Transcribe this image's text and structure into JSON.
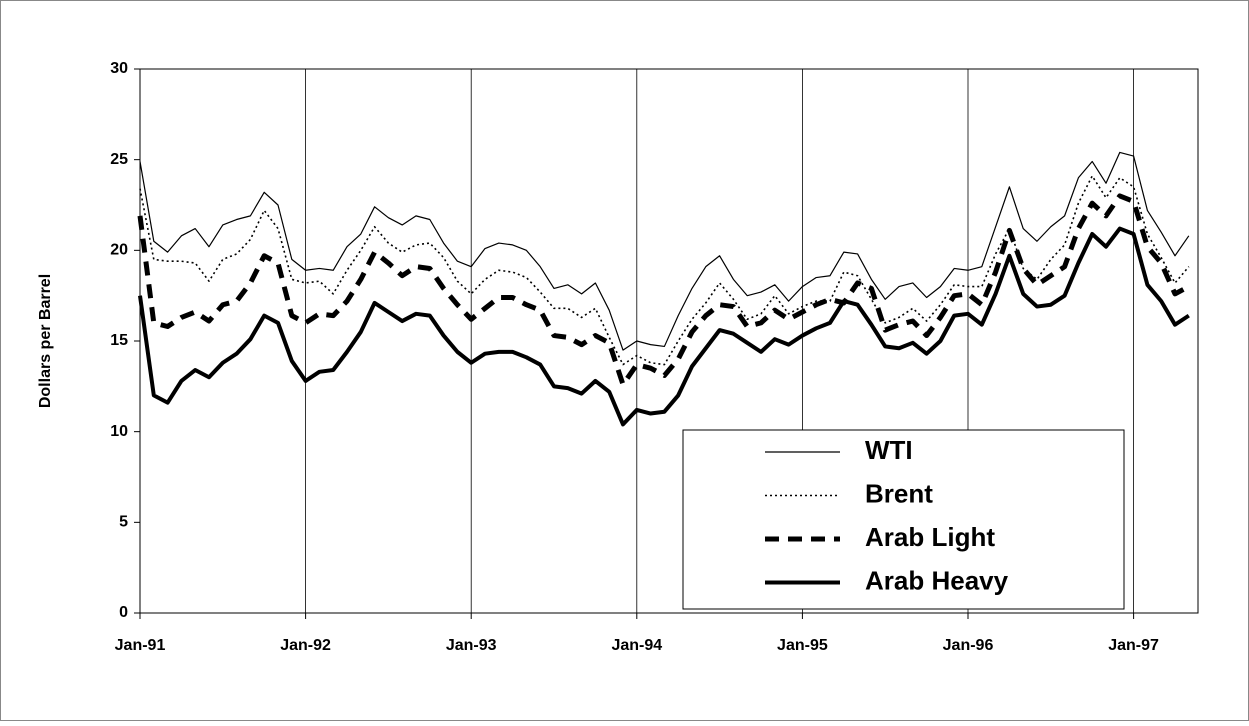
{
  "chart_data": {
    "type": "line",
    "y_label": "Dollars per Barrel",
    "categories": [
      "Jan-91",
      null,
      null,
      null,
      null,
      null,
      null,
      null,
      null,
      null,
      null,
      null,
      "Jan-92",
      null,
      null,
      null,
      null,
      null,
      null,
      null,
      null,
      null,
      null,
      null,
      "Jan-93",
      null,
      null,
      null,
      null,
      null,
      null,
      null,
      null,
      null,
      null,
      null,
      "Jan-94",
      null,
      null,
      null,
      null,
      null,
      null,
      null,
      null,
      null,
      null,
      null,
      "Jan-95",
      null,
      null,
      null,
      null,
      null,
      null,
      null,
      null,
      null,
      null,
      null,
      "Jan-96",
      null,
      null,
      null,
      null,
      null,
      null,
      null,
      null,
      null,
      null,
      null,
      "Jan-97",
      null,
      null,
      null,
      null
    ],
    "ylim": [
      0,
      30
    ],
    "yticks": [
      0,
      5,
      10,
      15,
      20,
      25,
      30
    ],
    "vertical_grid": true,
    "legend_position": "lower right",
    "series": [
      {
        "name": "WTI",
        "color": "#000000",
        "line_style": "thin",
        "values": [
          24.9,
          20.5,
          19.9,
          20.8,
          21.2,
          20.2,
          21.4,
          21.7,
          21.9,
          23.2,
          22.5,
          19.5,
          18.9,
          19.0,
          18.9,
          20.2,
          20.9,
          22.4,
          21.8,
          21.4,
          21.9,
          21.7,
          20.4,
          19.4,
          19.1,
          20.1,
          20.4,
          20.3,
          20.0,
          19.1,
          17.9,
          18.1,
          17.6,
          18.2,
          16.7,
          14.5,
          15.0,
          14.8,
          14.7,
          16.4,
          17.9,
          19.1,
          19.7,
          18.4,
          17.5,
          17.7,
          18.1,
          17.2,
          18.0,
          18.5,
          18.6,
          19.9,
          19.8,
          18.4,
          17.3,
          18.0,
          18.2,
          17.4,
          18.0,
          19.0,
          18.9,
          19.1,
          21.3,
          23.5,
          21.2,
          20.5,
          21.3,
          21.9,
          24.0,
          24.9,
          23.7,
          25.4,
          25.2,
          22.2,
          21.0,
          19.7,
          20.8
        ]
      },
      {
        "name": "Brent",
        "color": "#000000",
        "line_style": "dotted",
        "values": [
          23.4,
          19.5,
          19.4,
          19.4,
          19.3,
          18.3,
          19.5,
          19.8,
          20.6,
          22.2,
          21.2,
          18.4,
          18.2,
          18.3,
          17.6,
          18.9,
          20.0,
          21.3,
          20.4,
          19.9,
          20.3,
          20.4,
          19.6,
          18.3,
          17.6,
          18.4,
          18.9,
          18.8,
          18.5,
          17.7,
          16.8,
          16.8,
          16.3,
          16.8,
          15.2,
          13.7,
          14.2,
          13.8,
          13.7,
          15.0,
          16.2,
          17.1,
          18.2,
          17.3,
          16.2,
          16.5,
          17.5,
          16.5,
          16.9,
          17.2,
          17.2,
          18.8,
          18.6,
          17.3,
          16.0,
          16.3,
          16.8,
          16.1,
          17.0,
          18.1,
          18.0,
          18.0,
          19.8,
          21.2,
          19.0,
          18.4,
          19.5,
          20.3,
          22.6,
          24.1,
          22.9,
          24.0,
          23.5,
          20.9,
          19.6,
          18.2,
          19.1
        ]
      },
      {
        "name": "Arab Light",
        "color": "#000000",
        "line_style": "dashed",
        "values": [
          21.9,
          16.0,
          15.8,
          16.3,
          16.6,
          16.1,
          17.0,
          17.2,
          18.2,
          19.7,
          19.3,
          16.4,
          16.0,
          16.5,
          16.4,
          17.2,
          18.4,
          19.9,
          19.3,
          18.6,
          19.1,
          19.0,
          17.9,
          17.0,
          16.2,
          16.8,
          17.4,
          17.4,
          17.0,
          16.7,
          15.3,
          15.2,
          14.8,
          15.3,
          14.9,
          12.6,
          13.7,
          13.5,
          13.1,
          14.0,
          15.5,
          16.4,
          17.0,
          16.9,
          15.8,
          16.0,
          16.7,
          16.2,
          16.6,
          17.0,
          17.3,
          17.1,
          18.2,
          17.9,
          15.6,
          15.9,
          16.1,
          15.3,
          16.3,
          17.5,
          17.6,
          17.0,
          18.8,
          21.1,
          19.0,
          18.1,
          18.6,
          19.1,
          21.2,
          22.6,
          21.9,
          23.0,
          22.7,
          20.2,
          19.3,
          17.6,
          18.0
        ]
      },
      {
        "name": "Arab Heavy",
        "color": "#000000",
        "line_style": "thick",
        "values": [
          17.5,
          12.0,
          11.6,
          12.8,
          13.4,
          13.0,
          13.8,
          14.3,
          15.1,
          16.4,
          16.0,
          13.9,
          12.8,
          13.3,
          13.4,
          14.4,
          15.5,
          17.1,
          16.6,
          16.1,
          16.5,
          16.4,
          15.3,
          14.4,
          13.8,
          14.3,
          14.4,
          14.4,
          14.1,
          13.7,
          12.5,
          12.4,
          12.1,
          12.8,
          12.2,
          10.4,
          11.2,
          11.0,
          11.1,
          12.0,
          13.6,
          14.6,
          15.6,
          15.4,
          14.9,
          14.4,
          15.1,
          14.8,
          15.3,
          15.7,
          16.0,
          17.2,
          17.0,
          15.9,
          14.7,
          14.6,
          14.9,
          14.3,
          15.0,
          16.4,
          16.5,
          15.9,
          17.6,
          19.7,
          17.6,
          16.9,
          17.0,
          17.5,
          19.3,
          20.9,
          20.2,
          21.2,
          20.9,
          18.1,
          17.2,
          15.9,
          16.4
        ]
      }
    ]
  }
}
